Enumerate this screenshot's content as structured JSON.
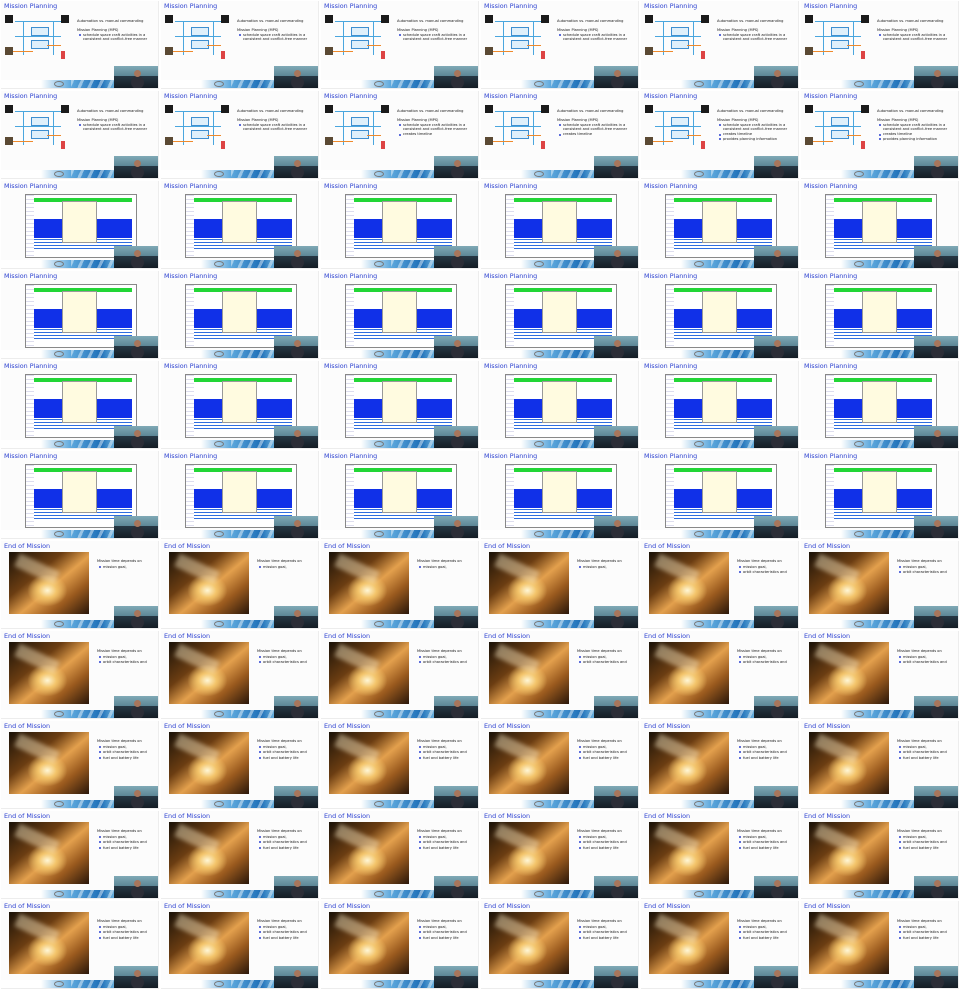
{
  "grid": {
    "columns": 6,
    "rows": 11
  },
  "colors": {
    "title": "#2a3fd0",
    "tool_green": "#22d636",
    "tool_blue": "#1030e8"
  },
  "slide_types": {
    "mission_planning_diagram": {
      "title": "Mission Planning",
      "heading": "Automation vs. manual commanding",
      "sub_heading": "Mission Planning (MPS)",
      "bullets": [
        "schedule space craft activities in a consistent and conflict-free manner",
        "creates timeline",
        "provides planning information"
      ]
    },
    "mission_planning_tool": {
      "title": "Mission Planning"
    },
    "end_of_mission": {
      "title": "End of Mission",
      "intro": "Mission time depends on",
      "bullets": [
        "mission goal,",
        "orbit characteristics and",
        "fuel and battery life"
      ]
    }
  },
  "slides": [
    {
      "type": "mission_planning_diagram",
      "bullets": 1
    },
    {
      "type": "mission_planning_diagram",
      "bullets": 1
    },
    {
      "type": "mission_planning_diagram",
      "bullets": 1
    },
    {
      "type": "mission_planning_diagram",
      "bullets": 1
    },
    {
      "type": "mission_planning_diagram",
      "bullets": 1
    },
    {
      "type": "mission_planning_diagram",
      "bullets": 1
    },
    {
      "type": "mission_planning_diagram",
      "bullets": 1
    },
    {
      "type": "mission_planning_diagram",
      "bullets": 1
    },
    {
      "type": "mission_planning_diagram",
      "bullets": 2
    },
    {
      "type": "mission_planning_diagram",
      "bullets": 2
    },
    {
      "type": "mission_planning_diagram",
      "bullets": 3
    },
    {
      "type": "mission_planning_diagram",
      "bullets": 3
    },
    {
      "type": "mission_planning_tool"
    },
    {
      "type": "mission_planning_tool"
    },
    {
      "type": "mission_planning_tool"
    },
    {
      "type": "mission_planning_tool"
    },
    {
      "type": "mission_planning_tool"
    },
    {
      "type": "mission_planning_tool"
    },
    {
      "type": "mission_planning_tool"
    },
    {
      "type": "mission_planning_tool"
    },
    {
      "type": "mission_planning_tool"
    },
    {
      "type": "mission_planning_tool"
    },
    {
      "type": "mission_planning_tool"
    },
    {
      "type": "mission_planning_tool"
    },
    {
      "type": "mission_planning_tool"
    },
    {
      "type": "mission_planning_tool"
    },
    {
      "type": "mission_planning_tool"
    },
    {
      "type": "mission_planning_tool"
    },
    {
      "type": "mission_planning_tool"
    },
    {
      "type": "mission_planning_tool"
    },
    {
      "type": "mission_planning_tool"
    },
    {
      "type": "mission_planning_tool"
    },
    {
      "type": "mission_planning_tool"
    },
    {
      "type": "mission_planning_tool"
    },
    {
      "type": "mission_planning_tool"
    },
    {
      "type": "mission_planning_tool"
    },
    {
      "type": "end_of_mission",
      "bullets": 1
    },
    {
      "type": "end_of_mission",
      "bullets": 1
    },
    {
      "type": "end_of_mission",
      "bullets": 1
    },
    {
      "type": "end_of_mission",
      "bullets": 1
    },
    {
      "type": "end_of_mission",
      "bullets": 2
    },
    {
      "type": "end_of_mission",
      "bullets": 2
    },
    {
      "type": "end_of_mission",
      "bullets": 2
    },
    {
      "type": "end_of_mission",
      "bullets": 2
    },
    {
      "type": "end_of_mission",
      "bullets": 2
    },
    {
      "type": "end_of_mission",
      "bullets": 2
    },
    {
      "type": "end_of_mission",
      "bullets": 2
    },
    {
      "type": "end_of_mission",
      "bullets": 2
    },
    {
      "type": "end_of_mission",
      "bullets": 3
    },
    {
      "type": "end_of_mission",
      "bullets": 3
    },
    {
      "type": "end_of_mission",
      "bullets": 3
    },
    {
      "type": "end_of_mission",
      "bullets": 3
    },
    {
      "type": "end_of_mission",
      "bullets": 3
    },
    {
      "type": "end_of_mission",
      "bullets": 3
    },
    {
      "type": "end_of_mission",
      "bullets": 3
    },
    {
      "type": "end_of_mission",
      "bullets": 3
    },
    {
      "type": "end_of_mission",
      "bullets": 3
    },
    {
      "type": "end_of_mission",
      "bullets": 3
    },
    {
      "type": "end_of_mission",
      "bullets": 3
    },
    {
      "type": "end_of_mission",
      "bullets": 3
    },
    {
      "type": "end_of_mission",
      "bullets": 3
    },
    {
      "type": "end_of_mission",
      "bullets": 3
    },
    {
      "type": "end_of_mission",
      "bullets": 3
    },
    {
      "type": "end_of_mission",
      "bullets": 3
    },
    {
      "type": "end_of_mission",
      "bullets": 3
    },
    {
      "type": "end_of_mission",
      "bullets": 3
    }
  ]
}
